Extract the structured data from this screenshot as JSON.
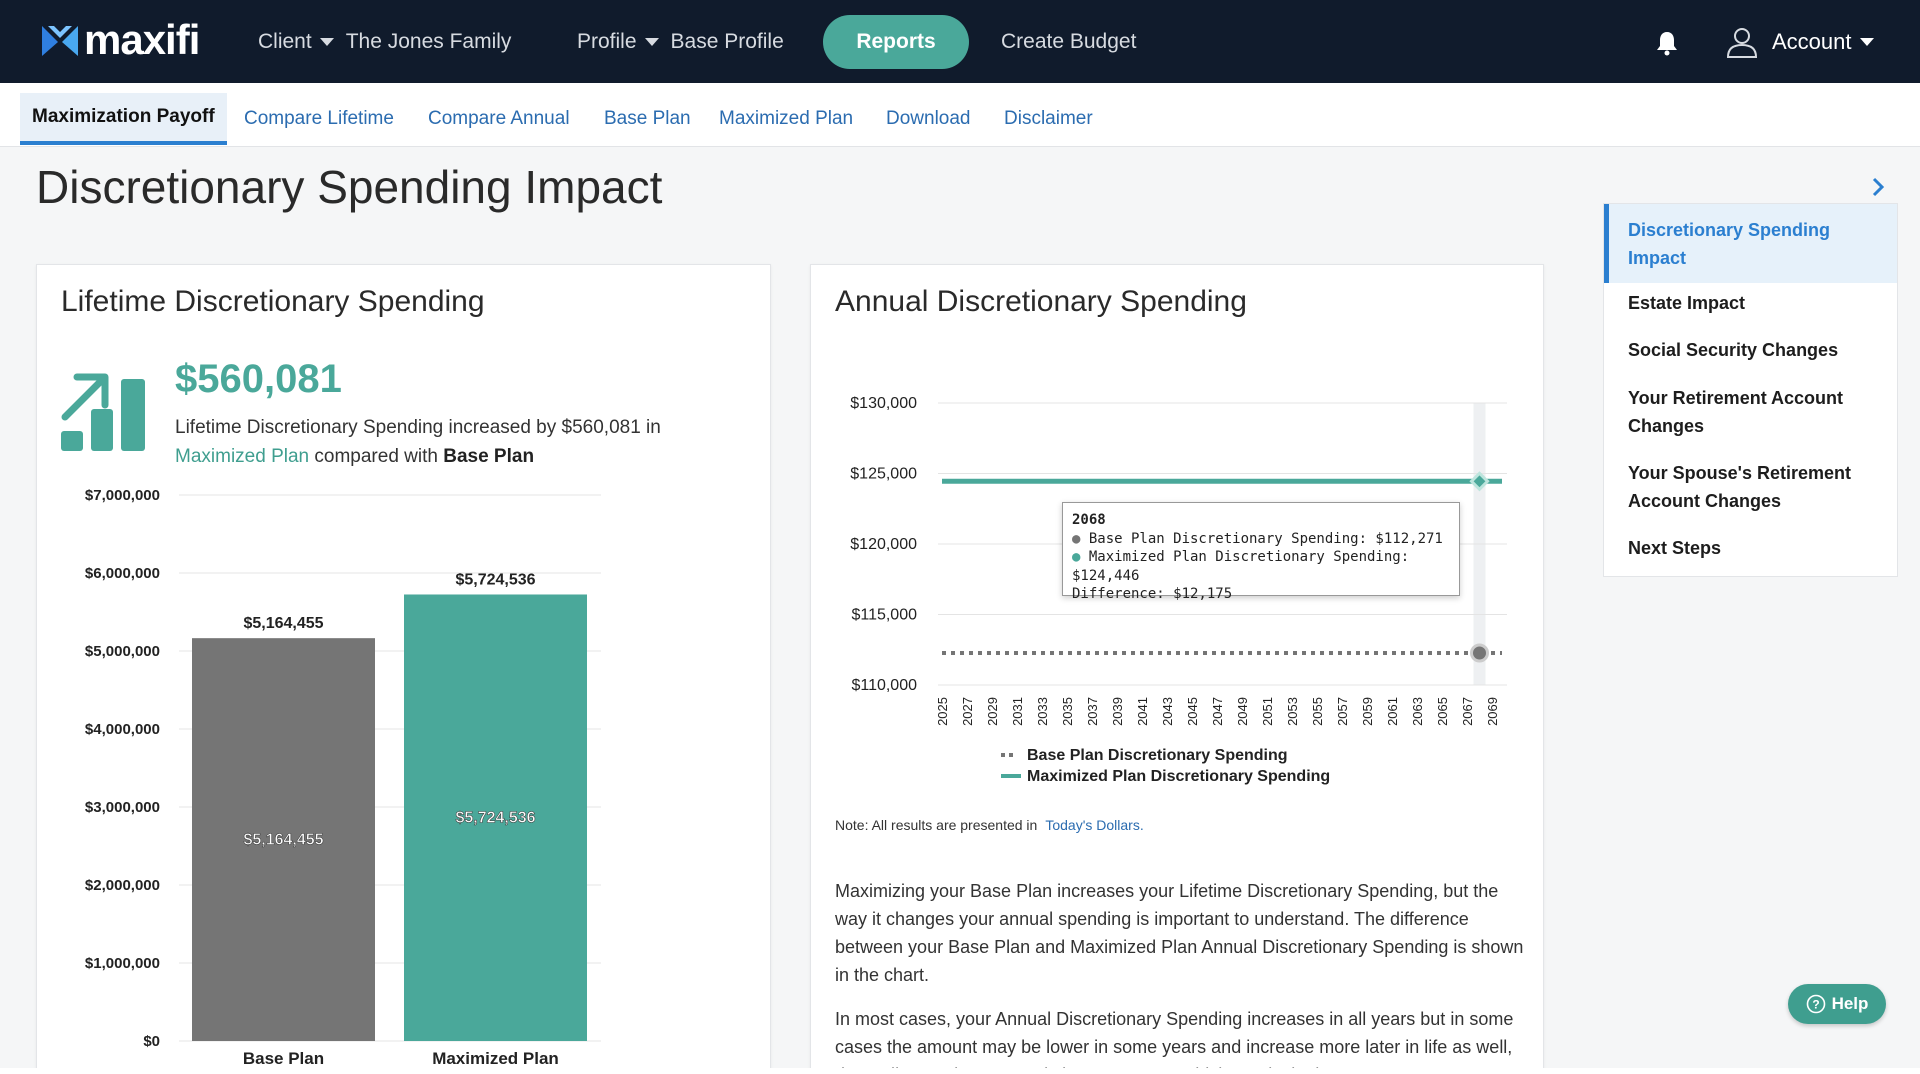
{
  "app": {
    "name": "maxifi"
  },
  "topnav": {
    "client_label": "Client",
    "client_value": "The Jones Family",
    "profile_label": "Profile",
    "profile_value": "Base Profile",
    "reports_label": "Reports",
    "create_budget_label": "Create Budget",
    "account_label": "Account"
  },
  "subnav": {
    "tabs": [
      {
        "label": "Maximization Payoff",
        "active": true
      },
      {
        "label": "Compare Lifetime"
      },
      {
        "label": "Compare Annual"
      },
      {
        "label": "Base Plan"
      },
      {
        "label": "Maximized Plan"
      },
      {
        "label": "Download"
      },
      {
        "label": "Disclaimer"
      }
    ]
  },
  "page": {
    "title": "Discretionary Spending Impact"
  },
  "lifetime_card": {
    "title": "Lifetime Discretionary Spending",
    "amount": "$560,081",
    "text_prefix": "Lifetime Discretionary Spending increased by $560,081 in",
    "maximized_label": "Maximized Plan",
    "compared_text": "compared with",
    "base_label": "Base Plan"
  },
  "annual_card": {
    "title": "Annual Discretionary Spending",
    "note_prefix": "Note: All results are presented in",
    "note_link": "Today's Dollars.",
    "para1": "Maximizing your Base Plan increases your Lifetime Discretionary Spending, but the way it changes your annual spending is important to understand. The difference between your Base Plan and Maximized Plan Annual Discretionary Spending is shown in the chart.",
    "para2": "In most cases, your Annual Discretionary Spending increases in all years but in some cases the amount may be lower in some years and increase more later in life as well, depending on the personal circumstances. Which results in the"
  },
  "tooltip": {
    "year": "2068",
    "base_line": "Base Plan Discretionary Spending: $112,271",
    "max_line": "Maximized Plan Discretionary Spending: $124,446",
    "diff_line": "Difference: $12,175"
  },
  "side_panel": {
    "items": [
      {
        "label": "Discretionary Spending Impact",
        "active": true
      },
      {
        "label": "Estate Impact"
      },
      {
        "label": "Social Security Changes"
      },
      {
        "label": "Your Retirement Account Changes"
      },
      {
        "label": "Your Spouse's Retirement Account Changes"
      },
      {
        "label": "Next Steps"
      }
    ]
  },
  "help": {
    "label": "Help"
  },
  "colors": {
    "teal": "#4aa89a",
    "gray_bar": "#757575",
    "nav_bg": "#101b2c",
    "link_blue": "#2b6cb0"
  },
  "chart_data": [
    {
      "type": "bar",
      "categories": [
        "Base Plan",
        "Maximized Plan"
      ],
      "values": [
        5164455,
        5724536
      ],
      "value_labels": [
        "$5,164,455",
        "$5,724,536"
      ],
      "colors": [
        "#757575",
        "#4aa89a"
      ],
      "ylim": [
        0,
        7000000
      ],
      "yticks": [
        "$0",
        "$1,000,000",
        "$2,000,000",
        "$3,000,000",
        "$4,000,000",
        "$5,000,000",
        "$6,000,000",
        "$7,000,000"
      ],
      "grid": true
    },
    {
      "type": "line",
      "x": [
        2025,
        2026,
        2027,
        2028,
        2029,
        2030,
        2031,
        2032,
        2033,
        2034,
        2035,
        2036,
        2037,
        2038,
        2039,
        2040,
        2041,
        2042,
        2043,
        2044,
        2045,
        2046,
        2047,
        2048,
        2049,
        2050,
        2051,
        2052,
        2053,
        2054,
        2055,
        2056,
        2057,
        2058,
        2059,
        2060,
        2061,
        2062,
        2063,
        2064,
        2065,
        2066,
        2067,
        2068,
        2069
      ],
      "xtick_labels": [
        "2025",
        "2027",
        "2029",
        "2031",
        "2033",
        "2035",
        "2037",
        "2039",
        "2041",
        "2043",
        "2045",
        "2047",
        "2049",
        "2051",
        "2053",
        "2055",
        "2057",
        "2059",
        "2061",
        "2063",
        "2065",
        "2067",
        "2069"
      ],
      "series": [
        {
          "name": "Base Plan Discretionary Spending",
          "value": 112271,
          "style": "dotted",
          "color": "#757575"
        },
        {
          "name": "Maximized Plan Discretionary Spending",
          "value": 124446,
          "style": "solid",
          "color": "#4aa89a"
        }
      ],
      "ylim": [
        110000,
        130000
      ],
      "yticks": [
        "$110,000",
        "$115,000",
        "$120,000",
        "$125,000",
        "$130,000"
      ],
      "highlight_x": 2068,
      "legend": "bottom",
      "grid": true
    }
  ]
}
